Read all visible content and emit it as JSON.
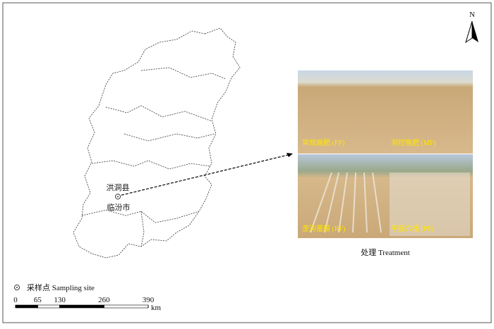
{
  "map": {
    "north": "N",
    "county": "洪洞县",
    "city": "临汾市"
  },
  "photos": [
    {
      "label": "常规施肥 (FP)"
    },
    {
      "label": "测控施肥 (MF)"
    },
    {
      "label": "垄沟覆膜 (RF)"
    },
    {
      "label": "平膜穴播 (PF)"
    }
  ],
  "photos_caption": "处理 Treatment",
  "legend": {
    "site": "采样点 Sampling site"
  },
  "scale": {
    "ticks": [
      0,
      65,
      130,
      260,
      390
    ],
    "unit": "km"
  }
}
